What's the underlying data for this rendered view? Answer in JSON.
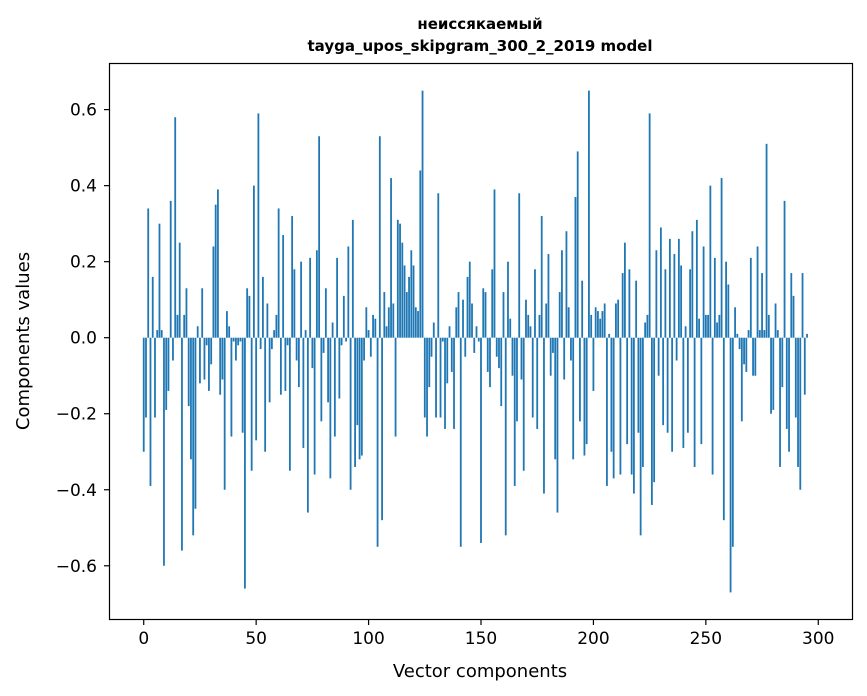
{
  "chart_data": {
    "type": "bar",
    "title_line1": "неиссякаемый",
    "title_line2": "tayga_upos_skipgram_300_2_2019 model",
    "xlabel": "Vector components",
    "ylabel": "Components values",
    "xlim": [
      -15,
      315
    ],
    "ylim": [
      -0.74,
      0.72
    ],
    "xticks": [
      0,
      50,
      100,
      150,
      200,
      250,
      300
    ],
    "yticks": [
      -0.6,
      -0.4,
      -0.2,
      0.0,
      0.2,
      0.4,
      0.6
    ],
    "ytick_labels": [
      "−0.6",
      "−0.4",
      "−0.2",
      "0.0",
      "0.2",
      "0.4",
      "0.6"
    ],
    "bar_color": "#1f77b4",
    "grid": false,
    "values": [
      -0.3,
      -0.21,
      0.34,
      -0.39,
      0.16,
      -0.21,
      0.02,
      0.3,
      0.02,
      -0.6,
      -0.19,
      -0.14,
      0.36,
      -0.06,
      0.58,
      0.06,
      0.25,
      -0.56,
      0.06,
      0.13,
      -0.18,
      -0.32,
      -0.52,
      -0.45,
      0.03,
      -0.12,
      0.13,
      -0.11,
      -0.02,
      -0.14,
      -0.07,
      0.24,
      0.35,
      0.39,
      -0.15,
      -0.11,
      -0.4,
      0.07,
      0.03,
      -0.26,
      -0.01,
      -0.06,
      -0.02,
      -0.01,
      -0.25,
      -0.66,
      0.13,
      0.11,
      -0.35,
      0.4,
      -0.27,
      0.59,
      -0.03,
      0.16,
      -0.3,
      0.09,
      -0.17,
      -0.03,
      0.02,
      0.06,
      0.34,
      -0.15,
      0.27,
      -0.14,
      -0.02,
      -0.35,
      0.32,
      0.18,
      -0.06,
      -0.13,
      0.2,
      -0.29,
      0.02,
      -0.46,
      0.21,
      -0.08,
      -0.36,
      0.23,
      0.53,
      -0.22,
      -0.04,
      0.13,
      -0.17,
      -0.37,
      0.04,
      -0.26,
      0.21,
      -0.16,
      -0.02,
      0.11,
      -0.01,
      0.24,
      -0.4,
      0.31,
      -0.34,
      -0.23,
      -0.32,
      -0.31,
      -0.06,
      0.08,
      0.02,
      -0.05,
      0.06,
      0.05,
      -0.55,
      0.53,
      -0.48,
      0.12,
      0.03,
      0.08,
      0.42,
      0.09,
      -0.26,
      0.31,
      0.3,
      0.25,
      0.19,
      0.12,
      0.16,
      0.23,
      0.19,
      0.08,
      0.07,
      0.44,
      0.65,
      -0.21,
      -0.26,
      -0.13,
      -0.05,
      0.04,
      -0.21,
      0.38,
      -0.21,
      -0.01,
      -0.24,
      -0.12,
      0.03,
      -0.09,
      -0.24,
      0.08,
      0.12,
      -0.55,
      0.1,
      -0.05,
      0.16,
      0.2,
      0.09,
      -0.04,
      0.03,
      -0.01,
      -0.54,
      0.13,
      0.12,
      -0.09,
      -0.13,
      0.18,
      0.39,
      -0.05,
      -0.08,
      -0.18,
      0.12,
      -0.52,
      0.2,
      0.05,
      -0.1,
      -0.39,
      -0.22,
      0.38,
      -0.11,
      -0.35,
      0.1,
      0.06,
      0.03,
      -0.21,
      0.18,
      -0.24,
      0.06,
      0.32,
      -0.41,
      0.09,
      0.22,
      -0.1,
      -0.04,
      -0.32,
      -0.46,
      0.12,
      0.23,
      -0.11,
      0.28,
      0.08,
      -0.06,
      -0.32,
      0.37,
      0.49,
      -0.22,
      0.15,
      -0.31,
      -0.28,
      0.65,
      0.06,
      -0.14,
      0.08,
      0.07,
      0.05,
      0.07,
      0.09,
      -0.39,
      0.01,
      -0.3,
      -0.37,
      0.09,
      0.1,
      -0.36,
      0.17,
      0.25,
      -0.28,
      0.18,
      -0.36,
      -0.41,
      0.15,
      -0.25,
      -0.52,
      -0.34,
      0.04,
      0.06,
      0.59,
      -0.44,
      -0.38,
      0.23,
      -0.1,
      0.29,
      -0.23,
      0.18,
      -0.25,
      0.26,
      -0.3,
      0.22,
      -0.06,
      0.26,
      0.19,
      -0.29,
      0.03,
      -0.25,
      0.18,
      0.28,
      -0.34,
      0.31,
      0.05,
      -0.28,
      0.24,
      0.06,
      0.06,
      0.4,
      -0.36,
      0.21,
      0.04,
      0.06,
      0.42,
      -0.48,
      0.2,
      0.14,
      -0.67,
      -0.55,
      0.08,
      0.01,
      -0.03,
      -0.22,
      -0.07,
      -0.09,
      0.02,
      0.21,
      -0.1,
      -0.1,
      0.24,
      0.02,
      0.17,
      0.02,
      0.51,
      0.06,
      -0.2,
      -0.19,
      0.09,
      0.02,
      -0.34,
      -0.13,
      0.36,
      -0.24,
      -0.3,
      0.17,
      0.11,
      -0.21,
      -0.34,
      -0.4,
      0.17,
      -0.15,
      0.01
    ]
  }
}
